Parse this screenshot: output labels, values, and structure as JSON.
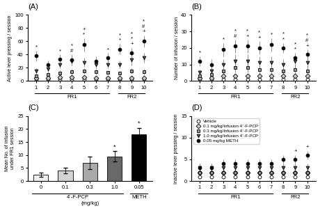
{
  "chart_data": [
    {
      "type": "scatter",
      "title": "(A)",
      "y_label": "Active lever pressing / session",
      "x": [
        1,
        2,
        3,
        4,
        5,
        6,
        7,
        8,
        9,
        10
      ],
      "xlim": [
        0.3,
        10.7
      ],
      "xticks": [
        1,
        2,
        3,
        4,
        5,
        6,
        7,
        8,
        9,
        10
      ],
      "ylim": [
        0,
        100
      ],
      "yticks": [
        0,
        20,
        40,
        60,
        80,
        100
      ],
      "groups": [
        {
          "label": "FR1",
          "from": 1,
          "to": 7
        },
        {
          "label": "FR2",
          "from": 8,
          "to": 10
        }
      ],
      "series": [
        {
          "name": "Vehicle",
          "color": "#ffffff",
          "marker": "circle",
          "line_style": "none",
          "values": [
            2,
            2,
            2,
            2,
            2,
            2,
            2,
            2,
            2,
            2
          ],
          "errors": [
            1,
            1,
            1,
            1,
            1,
            1,
            1,
            1,
            1,
            1
          ]
        },
        {
          "name": "0.1 mg/kg/Infusion 4´-F-PCP",
          "color": "#c8c8c8",
          "marker": "diamond",
          "line_style": "none",
          "values": [
            5,
            5,
            6,
            6,
            6,
            5,
            5,
            5,
            5,
            5
          ],
          "errors": [
            2,
            2,
            2,
            2,
            2,
            2,
            2,
            2,
            2,
            2
          ]
        },
        {
          "name": "0.3 mg/kg/Infusion 4´-F-PCP",
          "color": "#969696",
          "marker": "square",
          "line_style": "none",
          "values": [
            8,
            10,
            12,
            14,
            15,
            14,
            13,
            12,
            15,
            14
          ],
          "errors": [
            3,
            3,
            4,
            4,
            4,
            4,
            3,
            3,
            4,
            4
          ]
        },
        {
          "name": "1.0 mg/kg/Infusion 4´-F-PCP",
          "color": "#505050",
          "marker": "triangle_down",
          "line_style": "none",
          "values": [
            15,
            18,
            25,
            30,
            28,
            25,
            25,
            25,
            32,
            35
          ],
          "errors": [
            4,
            5,
            6,
            7,
            7,
            6,
            6,
            6,
            8,
            7
          ]
        },
        {
          "name": "0.05 mg/kg METH",
          "color": "#000000",
          "marker": "circle",
          "line_style": "none",
          "values": [
            38,
            25,
            33,
            32,
            55,
            30,
            35,
            48,
            42,
            60
          ],
          "errors": [
            8,
            6,
            7,
            8,
            10,
            7,
            7,
            8,
            8,
            9
          ],
          "annotations": [
            {
              "x": 1,
              "text": [
                "*"
              ]
            },
            {
              "x": 3,
              "text": [
                "*"
              ]
            },
            {
              "x": 4,
              "text": [
                "*",
                "#"
              ]
            },
            {
              "x": 5,
              "text": [
                "+",
                "*"
              ]
            },
            {
              "x": 7,
              "text": [
                "*"
              ]
            },
            {
              "x": 8,
              "text": [
                "*",
                "*"
              ]
            },
            {
              "x": 9,
              "text": [
                "*",
                "*",
                "+"
              ]
            },
            {
              "x": 10,
              "text": [
                "*",
                "#",
                "+"
              ]
            }
          ]
        }
      ]
    },
    {
      "type": "scatter",
      "title": "(B)",
      "y_label": "Number of infusion / session",
      "x": [
        1,
        2,
        3,
        4,
        5,
        6,
        7,
        8,
        9,
        10
      ],
      "xlim": [
        0.3,
        10.7
      ],
      "xticks": [
        1,
        2,
        3,
        4,
        5,
        6,
        7,
        8,
        9,
        10
      ],
      "ylim": [
        0,
        40
      ],
      "yticks": [
        0,
        10,
        20,
        30,
        40
      ],
      "groups": [
        {
          "label": "FR1",
          "from": 1,
          "to": 7
        },
        {
          "label": "FR2",
          "from": 8,
          "to": 10
        }
      ],
      "series": [
        {
          "name": "Vehicle",
          "color": "#ffffff",
          "marker": "circle",
          "line_style": "none",
          "values": [
            1,
            1,
            1,
            1,
            1,
            1,
            1,
            1,
            1,
            1
          ],
          "errors": [
            0.5,
            0.5,
            0.5,
            0.5,
            0.5,
            0.5,
            0.5,
            0.5,
            0.5,
            0.5
          ]
        },
        {
          "name": "0.1 mg/kg/Infusion 4´-F-PCP",
          "color": "#c8c8c8",
          "marker": "diamond",
          "line_style": "none",
          "values": [
            2,
            2,
            3,
            3,
            3,
            3,
            3,
            3,
            3,
            3
          ],
          "errors": [
            1,
            1,
            1,
            1,
            1,
            1,
            1,
            1,
            1,
            1
          ]
        },
        {
          "name": "0.3 mg/kg/Infusion 4´-F-PCP",
          "color": "#969696",
          "marker": "square",
          "line_style": "none",
          "values": [
            3,
            4,
            6,
            8,
            8,
            7,
            7,
            6,
            7,
            6
          ],
          "errors": [
            1,
            2,
            2,
            3,
            3,
            3,
            3,
            2,
            3,
            3
          ]
        },
        {
          "name": "1.0 mg/kg/Infusion 4´-F-PCP",
          "color": "#505050",
          "marker": "triangle_down",
          "line_style": "none",
          "values": [
            5,
            6,
            10,
            12,
            12,
            11,
            11,
            10,
            12,
            11
          ],
          "errors": [
            2,
            2,
            3,
            4,
            4,
            4,
            4,
            3,
            4,
            4
          ]
        },
        {
          "name": "0.05 mg/kg METH",
          "color": "#000000",
          "marker": "circle",
          "line_style": "none",
          "values": [
            12,
            10,
            19,
            21,
            21,
            20,
            22,
            20,
            14,
            16
          ],
          "errors": [
            3,
            3,
            4,
            4,
            4,
            4,
            4,
            3,
            3,
            3
          ],
          "annotations": [
            {
              "x": 1,
              "text": [
                "*"
              ]
            },
            {
              "x": 3,
              "text": [
                "*"
              ]
            },
            {
              "x": 4,
              "text": [
                "*",
                "#"
              ]
            },
            {
              "x": 5,
              "text": [
                "*",
                "+"
              ]
            },
            {
              "x": 6,
              "text": [
                "*",
                "+"
              ]
            },
            {
              "x": 7,
              "text": [
                "*"
              ]
            },
            {
              "x": 8,
              "text": [
                "*",
                "*"
              ]
            },
            {
              "x": 9,
              "text": [
                "*",
                "*"
              ]
            },
            {
              "x": 10,
              "text": [
                "*",
                "#",
                "+"
              ]
            }
          ]
        }
      ]
    },
    {
      "type": "bar",
      "title": "(C)",
      "y_label": "Mean No. of infusion\nunder FR1 session",
      "x_label": "(mg/kg)",
      "categories": [
        "0",
        "0.1",
        "0.3",
        "1.0",
        "0.05"
      ],
      "values": [
        2.5,
        4.0,
        7.0,
        9.5,
        18.0
      ],
      "errors": [
        0.8,
        1.0,
        2.5,
        2.0,
        2.5
      ],
      "colors": [
        "#f0f0f0",
        "#d3d3d3",
        "#a9a9a9",
        "#696969",
        "#000000"
      ],
      "ylim": [
        0,
        25
      ],
      "yticks": [
        0,
        5,
        10,
        15,
        20,
        25
      ],
      "annotations": [
        {
          "category": "1.0",
          "text": "*"
        },
        {
          "category": "0.05",
          "text": "*"
        }
      ],
      "groups": [
        {
          "label": "4´-F-PCP",
          "from": "0",
          "to": "1.0"
        },
        {
          "label": "METH",
          "from": "0.05",
          "to": "0.05"
        }
      ]
    },
    {
      "type": "scatter",
      "title": "(D)",
      "y_label": "Inactive lever pressing / session",
      "x": [
        1,
        2,
        3,
        4,
        5,
        6,
        7,
        8,
        9,
        10
      ],
      "xlim": [
        0.3,
        10.7
      ],
      "xticks": [
        1,
        2,
        3,
        4,
        5,
        6,
        7,
        8,
        9,
        10
      ],
      "ylim": [
        0,
        15
      ],
      "yticks": [
        0,
        5,
        10,
        15
      ],
      "legend": "upper left",
      "groups": [
        {
          "label": "FR1",
          "from": 1,
          "to": 7
        },
        {
          "label": "FR2",
          "from": 8,
          "to": 10
        }
      ],
      "series": [
        {
          "name": "Vehicle",
          "color": "#ffffff",
          "marker": "circle",
          "line_style": "none",
          "values": [
            1,
            1,
            1,
            1,
            1,
            1,
            1,
            1,
            1,
            1
          ],
          "errors": [
            0.5,
            0.5,
            0.5,
            0.5,
            0.5,
            0.5,
            0.5,
            0.5,
            0.5,
            0.5
          ]
        },
        {
          "name": "0.1 mg/kg/Infusion 4´-F-PCP",
          "color": "#c8c8c8",
          "marker": "diamond",
          "line_style": "none",
          "values": [
            2,
            2,
            2,
            2,
            2,
            2,
            2,
            2,
            2,
            2
          ],
          "errors": [
            0.5,
            0.5,
            0.5,
            0.5,
            0.5,
            0.5,
            0.5,
            0.5,
            0.5,
            0.5
          ]
        },
        {
          "name": "0.3 mg/kg/Infusion 4´-F-PCP",
          "color": "#969696",
          "marker": "square",
          "line_style": "none",
          "values": [
            2,
            2,
            2,
            2,
            2,
            2,
            2,
            2,
            2,
            2
          ],
          "errors": [
            0.5,
            0.5,
            0.5,
            0.5,
            0.5,
            0.5,
            0.5,
            0.5,
            0.5,
            0.5
          ]
        },
        {
          "name": "1.0 mg/kg/Infusion 4´-F-PCP",
          "color": "#505050",
          "marker": "triangle_down",
          "line_style": "none",
          "values": [
            3,
            3,
            3,
            3,
            3,
            3,
            3,
            3,
            3,
            3
          ],
          "errors": [
            1,
            1,
            1,
            1,
            1,
            1,
            1,
            1,
            1,
            1
          ]
        },
        {
          "name": "0.05 mg/kg METH",
          "color": "#000000",
          "marker": "circle",
          "line_style": "none",
          "values": [
            3,
            3,
            4,
            4,
            4,
            4,
            4,
            5,
            5,
            6
          ],
          "errors": [
            1,
            1,
            1,
            1,
            1,
            1,
            1,
            1,
            1,
            1
          ],
          "annotations": [
            {
              "x": 9,
              "text": [
                "+"
              ]
            },
            {
              "x": 10,
              "text": [
                "+"
              ]
            }
          ]
        }
      ]
    }
  ]
}
